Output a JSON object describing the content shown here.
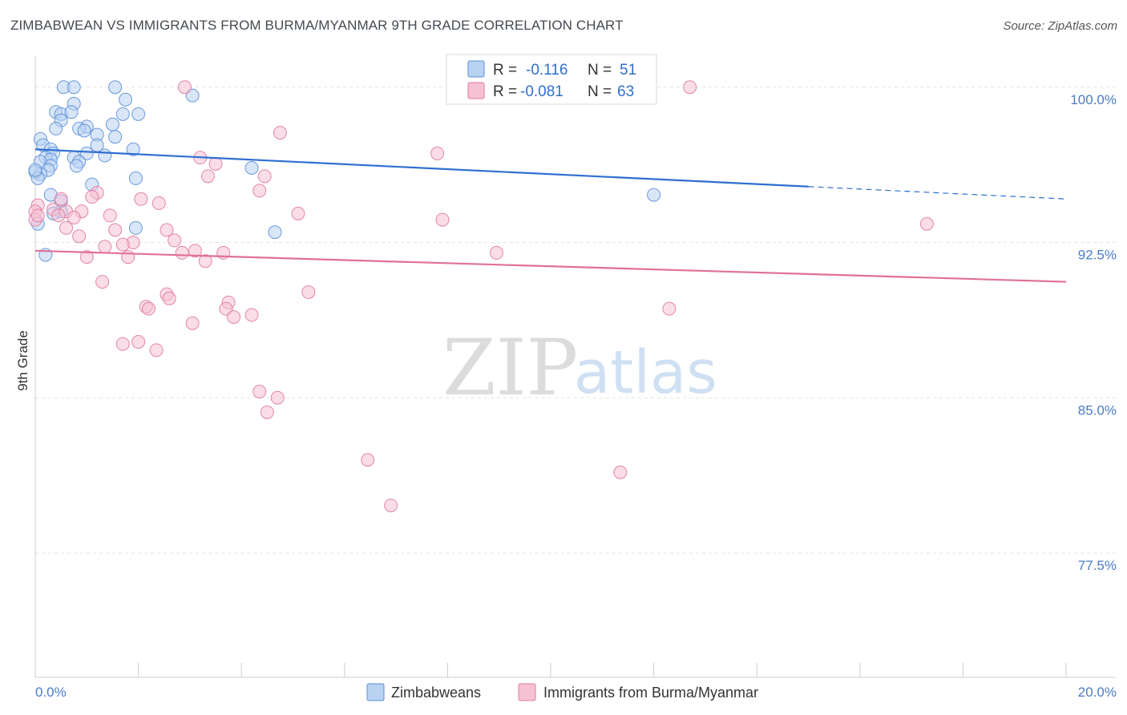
{
  "title": "ZIMBABWEAN VS IMMIGRANTS FROM BURMA/MYANMAR 9TH GRADE CORRELATION CHART",
  "source": "Source: ZipAtlas.com",
  "watermark": {
    "zip": "ZIP",
    "atlas": "atlas"
  },
  "colors": {
    "blue": "#5b8fd6",
    "blue_fill": "#b9d2f2",
    "blue_line": "#2f6fd0",
    "pink": "#e07aa0",
    "pink_fill": "#f6c1d3",
    "pink_line": "#e0709a",
    "grid": "#e4e4e4",
    "axis_text": "#4a7cc7"
  },
  "legend": {
    "rows": [
      {
        "r_label": "R =",
        "r_value": "-0.116",
        "n_label": "N =",
        "n_value": "51"
      },
      {
        "r_label": "R =",
        "r_value": "-0.081",
        "n_label": "N =",
        "n_value": "63"
      }
    ]
  },
  "chart_data": {
    "type": "scatter",
    "title": "ZIMBABWEAN VS IMMIGRANTS FROM BURMA/MYANMAR 9TH GRADE CORRELATION CHART",
    "xlabel": "",
    "ylabel": "9th Grade",
    "xlim": [
      0,
      20
    ],
    "ylim": [
      71.5,
      101.5
    ],
    "x_tick_labels": [
      "0.0%",
      "20.0%"
    ],
    "y_ticks": [
      100.0,
      92.5,
      85.0,
      77.5
    ],
    "y_tick_labels": [
      "100.0%",
      "92.5%",
      "85.0%",
      "77.5%"
    ],
    "grid": true,
    "series": [
      {
        "name": "Zimbabweans",
        "color": "blue",
        "trend": {
          "x0": 0,
          "y0": 97.0,
          "x1": 15.0,
          "y1": 95.2,
          "dash_to_x": 20,
          "dash_to_y": 94.6
        },
        "points": [
          [
            0.55,
            100.0
          ],
          [
            0.75,
            100.0
          ],
          [
            1.55,
            100.0
          ],
          [
            3.05,
            99.6
          ],
          [
            1.75,
            99.4
          ],
          [
            0.75,
            99.2
          ],
          [
            0.4,
            98.8
          ],
          [
            0.5,
            98.7
          ],
          [
            0.7,
            98.8
          ],
          [
            1.7,
            98.7
          ],
          [
            2.0,
            98.7
          ],
          [
            0.5,
            98.4
          ],
          [
            1.0,
            98.1
          ],
          [
            1.5,
            98.2
          ],
          [
            0.85,
            98.0
          ],
          [
            0.4,
            98.0
          ],
          [
            0.95,
            97.9
          ],
          [
            1.2,
            97.7
          ],
          [
            1.55,
            97.6
          ],
          [
            0.1,
            97.5
          ],
          [
            0.15,
            97.2
          ],
          [
            1.2,
            97.2
          ],
          [
            1.9,
            97.0
          ],
          [
            0.3,
            97.0
          ],
          [
            0.35,
            96.8
          ],
          [
            0.2,
            96.6
          ],
          [
            0.3,
            96.5
          ],
          [
            0.1,
            96.4
          ],
          [
            0.75,
            96.6
          ],
          [
            1.0,
            96.8
          ],
          [
            0.85,
            96.4
          ],
          [
            0.3,
            96.2
          ],
          [
            0.25,
            96.0
          ],
          [
            0.1,
            95.8
          ],
          [
            0.0,
            95.9
          ],
          [
            0.05,
            95.6
          ],
          [
            1.95,
            95.6
          ],
          [
            1.1,
            95.3
          ],
          [
            4.2,
            96.1
          ],
          [
            12.0,
            94.8
          ],
          [
            0.3,
            94.8
          ],
          [
            0.5,
            94.5
          ],
          [
            0.5,
            94.0
          ],
          [
            0.35,
            93.9
          ],
          [
            0.05,
            93.4
          ],
          [
            1.95,
            93.2
          ],
          [
            4.65,
            93.0
          ],
          [
            0.2,
            91.9
          ],
          [
            0.8,
            96.2
          ],
          [
            1.35,
            96.7
          ],
          [
            0.0,
            96.0
          ]
        ]
      },
      {
        "name": "Immigrants from Burma/Myanmar",
        "color": "pink",
        "trend": {
          "x0": 0,
          "y0": 92.1,
          "x1": 20,
          "y1": 90.6
        },
        "points": [
          [
            2.9,
            100.0
          ],
          [
            12.7,
            100.0
          ],
          [
            4.75,
            97.8
          ],
          [
            7.8,
            96.8
          ],
          [
            3.2,
            96.6
          ],
          [
            3.5,
            96.3
          ],
          [
            3.35,
            95.7
          ],
          [
            4.45,
            95.7
          ],
          [
            4.35,
            95.0
          ],
          [
            1.2,
            94.9
          ],
          [
            0.5,
            94.6
          ],
          [
            1.1,
            94.7
          ],
          [
            2.05,
            94.6
          ],
          [
            2.4,
            94.4
          ],
          [
            0.05,
            94.3
          ],
          [
            0.0,
            94.0
          ],
          [
            0.35,
            94.1
          ],
          [
            0.6,
            94.0
          ],
          [
            0.9,
            94.0
          ],
          [
            1.45,
            93.8
          ],
          [
            0.75,
            93.7
          ],
          [
            0.0,
            93.6
          ],
          [
            0.05,
            93.8
          ],
          [
            0.45,
            93.8
          ],
          [
            0.6,
            93.2
          ],
          [
            5.1,
            93.9
          ],
          [
            7.9,
            93.6
          ],
          [
            17.3,
            93.4
          ],
          [
            2.55,
            93.1
          ],
          [
            1.55,
            93.1
          ],
          [
            0.85,
            92.8
          ],
          [
            1.9,
            92.5
          ],
          [
            2.7,
            92.6
          ],
          [
            1.7,
            92.4
          ],
          [
            1.35,
            92.3
          ],
          [
            2.85,
            92.0
          ],
          [
            3.1,
            92.1
          ],
          [
            3.65,
            92.0
          ],
          [
            8.95,
            92.0
          ],
          [
            1.0,
            91.8
          ],
          [
            1.8,
            91.8
          ],
          [
            3.3,
            91.6
          ],
          [
            1.3,
            90.6
          ],
          [
            2.55,
            90.0
          ],
          [
            5.3,
            90.1
          ],
          [
            2.6,
            89.8
          ],
          [
            3.75,
            89.6
          ],
          [
            2.15,
            89.4
          ],
          [
            2.2,
            89.3
          ],
          [
            3.7,
            89.3
          ],
          [
            4.2,
            89.0
          ],
          [
            3.85,
            88.9
          ],
          [
            12.3,
            89.3
          ],
          [
            3.05,
            88.6
          ],
          [
            1.7,
            87.6
          ],
          [
            2.0,
            87.7
          ],
          [
            2.35,
            87.3
          ],
          [
            4.35,
            85.3
          ],
          [
            4.7,
            85.0
          ],
          [
            4.5,
            84.3
          ],
          [
            6.45,
            82.0
          ],
          [
            11.35,
            81.4
          ],
          [
            6.9,
            79.8
          ]
        ]
      }
    ]
  },
  "bottom_legend": [
    {
      "label": "Zimbabweans",
      "color": "blue"
    },
    {
      "label": "Immigrants from Burma/Myanmar",
      "color": "pink"
    }
  ]
}
